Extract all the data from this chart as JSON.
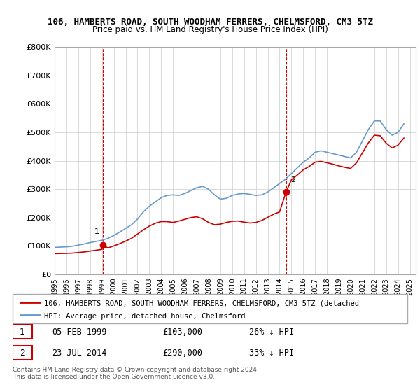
{
  "title": "106, HAMBERTS ROAD, SOUTH WOODHAM FERRERS, CHELMSFORD, CM3 5TZ",
  "subtitle": "Price paid vs. HM Land Registry's House Price Index (HPI)",
  "ylabel_ticks": [
    "£0",
    "£100K",
    "£200K",
    "£300K",
    "£400K",
    "£500K",
    "£600K",
    "£700K",
    "£800K"
  ],
  "ylim": [
    0,
    800000
  ],
  "xlim_start": 1995.0,
  "xlim_end": 2025.5,
  "sale1_date": 1999.09,
  "sale1_price": 103000,
  "sale1_label": "1",
  "sale2_date": 2014.55,
  "sale2_price": 290000,
  "sale2_label": "2",
  "line_color_red": "#cc0000",
  "line_color_blue": "#6699cc",
  "vline_color": "#cc0000",
  "grid_color": "#cccccc",
  "background_color": "#ffffff",
  "legend_label_red": "106, HAMBERTS ROAD, SOUTH WOODHAM FERRERS, CHELMSFORD, CM3 5TZ (detached",
  "legend_label_blue": "HPI: Average price, detached house, Chelmsford",
  "table_row1": [
    "1",
    "05-FEB-1999",
    "£103,000",
    "26% ↓ HPI"
  ],
  "table_row2": [
    "2",
    "23-JUL-2014",
    "£290,000",
    "33% ↓ HPI"
  ],
  "footer": "Contains HM Land Registry data © Crown copyright and database right 2024.\nThis data is licensed under the Open Government Licence v3.0.",
  "hpi_years": [
    1995.0,
    1995.5,
    1996.0,
    1996.5,
    1997.0,
    1997.5,
    1998.0,
    1998.5,
    1999.0,
    1999.5,
    2000.0,
    2000.5,
    2001.0,
    2001.5,
    2002.0,
    2002.5,
    2003.0,
    2003.5,
    2004.0,
    2004.5,
    2005.0,
    2005.5,
    2006.0,
    2006.5,
    2007.0,
    2007.5,
    2008.0,
    2008.5,
    2009.0,
    2009.5,
    2010.0,
    2010.5,
    2011.0,
    2011.5,
    2012.0,
    2012.5,
    2013.0,
    2013.5,
    2014.0,
    2014.5,
    2015.0,
    2015.5,
    2016.0,
    2016.5,
    2017.0,
    2017.5,
    2018.0,
    2018.5,
    2019.0,
    2019.5,
    2020.0,
    2020.5,
    2021.0,
    2021.5,
    2022.0,
    2022.5,
    2023.0,
    2023.5,
    2024.0,
    2024.5
  ],
  "hpi_values": [
    95000,
    96000,
    97000,
    99000,
    103000,
    107000,
    112000,
    116000,
    120000,
    127000,
    137000,
    149000,
    162000,
    175000,
    195000,
    220000,
    240000,
    255000,
    270000,
    278000,
    280000,
    278000,
    285000,
    295000,
    305000,
    310000,
    300000,
    280000,
    265000,
    268000,
    278000,
    283000,
    285000,
    282000,
    278000,
    280000,
    290000,
    305000,
    320000,
    335000,
    355000,
    375000,
    395000,
    410000,
    430000,
    435000,
    430000,
    425000,
    420000,
    415000,
    410000,
    430000,
    470000,
    510000,
    540000,
    540000,
    510000,
    490000,
    500000,
    530000
  ],
  "red_years": [
    1995.0,
    1995.5,
    1996.0,
    1996.5,
    1997.0,
    1997.5,
    1998.0,
    1998.5,
    1999.0,
    1999.09,
    1999.5,
    2000.0,
    2000.5,
    2001.0,
    2001.5,
    2002.0,
    2002.5,
    2003.0,
    2003.5,
    2004.0,
    2004.5,
    2005.0,
    2005.5,
    2006.0,
    2006.5,
    2007.0,
    2007.5,
    2008.0,
    2008.5,
    2009.0,
    2009.5,
    2010.0,
    2010.5,
    2011.0,
    2011.5,
    2012.0,
    2012.5,
    2013.0,
    2013.5,
    2014.0,
    2014.55,
    2015.0,
    2015.5,
    2016.0,
    2016.5,
    2017.0,
    2017.5,
    2018.0,
    2018.5,
    2019.0,
    2019.5,
    2020.0,
    2020.5,
    2021.0,
    2021.5,
    2022.0,
    2022.5,
    2023.0,
    2023.5,
    2024.0,
    2024.5
  ],
  "red_values": [
    73000,
    73500,
    74000,
    75000,
    77000,
    79000,
    82000,
    85000,
    88000,
    103000,
    93000,
    100000,
    108000,
    117000,
    127000,
    142000,
    157000,
    170000,
    180000,
    186000,
    186000,
    183000,
    188000,
    194000,
    200000,
    203000,
    196000,
    183000,
    175000,
    177000,
    183000,
    187000,
    188000,
    184000,
    181000,
    183000,
    190000,
    201000,
    212000,
    220000,
    290000,
    333000,
    350000,
    368000,
    380000,
    395000,
    398000,
    393000,
    388000,
    382000,
    377000,
    373000,
    393000,
    428000,
    463000,
    490000,
    488000,
    462000,
    445000,
    455000,
    480000
  ]
}
